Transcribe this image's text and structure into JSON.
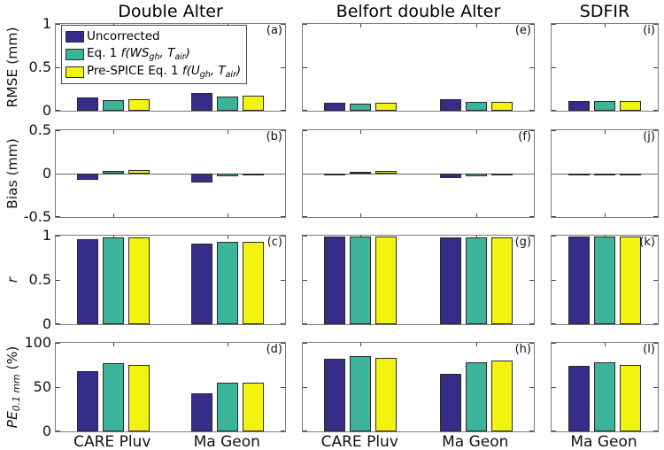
{
  "figure": {
    "background": "#ffffff"
  },
  "colors": {
    "series": [
      "#352d87",
      "#3cb49a",
      "#f2f410"
    ],
    "bar_edge": "#2a2a2a",
    "panel_border": "#7a7a7a",
    "zero_line": "#666666",
    "tick": "#444444",
    "text": "#000000"
  },
  "legend": {
    "items": [
      {
        "color_index": 0,
        "segments": [
          {
            "t": "Uncorrected"
          }
        ]
      },
      {
        "color_index": 1,
        "segments": [
          {
            "t": "Eq. 1 "
          },
          {
            "t": "f(WS",
            "i": 1
          },
          {
            "t": "gh",
            "i": 1,
            "s": 1
          },
          {
            "t": ", T",
            "i": 1
          },
          {
            "t": "air",
            "i": 1,
            "s": 1
          },
          {
            "t": ")",
            "i": 1
          }
        ]
      },
      {
        "color_index": 2,
        "segments": [
          {
            "t": "Pre-SPICE Eq. 1 "
          },
          {
            "t": "f(U",
            "i": 1
          },
          {
            "t": "gh",
            "i": 1,
            "s": 1
          },
          {
            "t": ", T",
            "i": 1
          },
          {
            "t": "air",
            "i": 1,
            "s": 1
          },
          {
            "t": ")",
            "i": 1
          }
        ]
      }
    ]
  },
  "chart_data": {
    "type": "bar",
    "legend_position": "top-left of panel (a)",
    "grid": false,
    "series": [
      {
        "name": "Uncorrected",
        "color": "#352d87"
      },
      {
        "name": "Eq. 1 f(WS_gh, T_air)",
        "color": "#3cb49a"
      },
      {
        "name": "Pre-SPICE Eq. 1 f(U_gh, T_air)",
        "color": "#f2f410"
      }
    ],
    "columns": [
      {
        "title": "Double Alter",
        "categories": [
          "CARE Pluv",
          "Ma Geon"
        ]
      },
      {
        "title": "Belfort double Alter",
        "categories": [
          "CARE Pluv",
          "Ma Geon"
        ]
      },
      {
        "title": "SDFIR",
        "categories": [
          "Ma Geon"
        ]
      }
    ],
    "rows": [
      {
        "ylabel": "RMSE (mm)",
        "label_segments": [
          {
            "t": "RMSE (mm)"
          }
        ],
        "ylim": [
          0,
          1
        ],
        "yticks": [
          1,
          0.5,
          0
        ],
        "ytick_labels": [
          "1",
          "0.5",
          "0"
        ],
        "zero_line": false
      },
      {
        "ylabel": "Bias (mm)",
        "label_segments": [
          {
            "t": "Bias (mm)"
          }
        ],
        "ylim": [
          -0.5,
          0.5
        ],
        "yticks": [
          0.5,
          0,
          -0.5
        ],
        "ytick_labels": [
          "0.5",
          "0",
          "-0.5"
        ],
        "zero_line": true
      },
      {
        "ylabel": "r",
        "label_segments": [
          {
            "t": "r",
            "i": 1
          }
        ],
        "ylim": [
          0,
          1
        ],
        "yticks": [
          1,
          0.5,
          0
        ],
        "ytick_labels": [
          "1",
          "0.5",
          "0"
        ],
        "zero_line": false
      },
      {
        "ylabel": "PE_0.1 mm (%)",
        "label_segments": [
          {
            "t": "PE",
            "i": 1
          },
          {
            "t": "0.1 mm",
            "i": 1,
            "s": 1
          },
          {
            "t": " (%)"
          }
        ],
        "ylim": [
          0,
          100
        ],
        "yticks": [
          100,
          50,
          0
        ],
        "ytick_labels": [
          "100",
          "50",
          "0"
        ],
        "zero_line": false
      }
    ],
    "panels": [
      {
        "letter": "(a)",
        "row": 0,
        "col": 0,
        "values": [
          [
            0.15,
            0.12,
            0.13
          ],
          [
            0.2,
            0.16,
            0.17
          ]
        ]
      },
      {
        "letter": "(b)",
        "row": 1,
        "col": 0,
        "values": [
          [
            -0.07,
            0.03,
            0.04
          ],
          [
            -0.1,
            -0.03,
            -0.01
          ]
        ]
      },
      {
        "letter": "(c)",
        "row": 2,
        "col": 0,
        "values": [
          [
            0.96,
            0.98,
            0.98
          ],
          [
            0.91,
            0.93,
            0.93
          ]
        ]
      },
      {
        "letter": "(d)",
        "row": 3,
        "col": 0,
        "values": [
          [
            68,
            77,
            75
          ],
          [
            43,
            55,
            55
          ]
        ]
      },
      {
        "letter": "(e)",
        "row": 0,
        "col": 1,
        "values": [
          [
            0.09,
            0.08,
            0.09
          ],
          [
            0.13,
            0.1,
            0.1
          ]
        ]
      },
      {
        "letter": "(f)",
        "row": 1,
        "col": 1,
        "values": [
          [
            -0.02,
            0.02,
            0.03
          ],
          [
            -0.05,
            -0.03,
            -0.01
          ]
        ]
      },
      {
        "letter": "(g)",
        "row": 2,
        "col": 1,
        "values": [
          [
            0.99,
            0.99,
            0.99
          ],
          [
            0.98,
            0.98,
            0.98
          ]
        ]
      },
      {
        "letter": "(h)",
        "row": 3,
        "col": 1,
        "values": [
          [
            82,
            85,
            83
          ],
          [
            65,
            78,
            80
          ]
        ]
      },
      {
        "letter": "(i)",
        "row": 0,
        "col": 2,
        "values": [
          [
            0.11,
            0.11,
            0.11
          ]
        ]
      },
      {
        "letter": "(j)",
        "row": 1,
        "col": 2,
        "values": [
          [
            -0.02,
            -0.01,
            -0.005
          ]
        ]
      },
      {
        "letter": "(k)",
        "row": 2,
        "col": 2,
        "values": [
          [
            0.99,
            0.99,
            0.99
          ]
        ]
      },
      {
        "letter": "(l)",
        "row": 3,
        "col": 2,
        "values": [
          [
            74,
            78,
            75
          ]
        ]
      }
    ]
  }
}
